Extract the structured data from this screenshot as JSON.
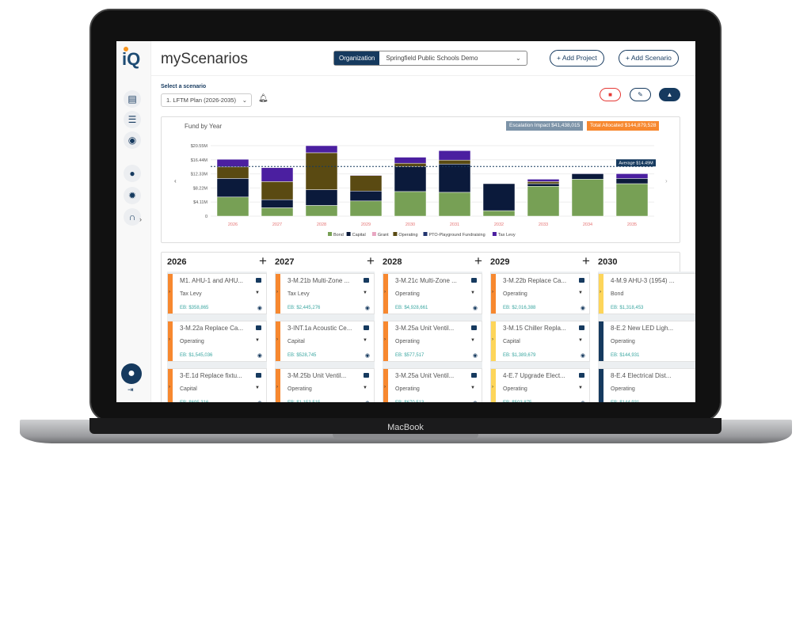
{
  "device_label": "MacBook",
  "app": {
    "logo": "iQ",
    "title": "myScenarios"
  },
  "sidebar": {
    "icons": [
      "clipboard-icon",
      "server-swap-icon",
      "gauge-icon",
      "user-icon",
      "gear-icon",
      "headset-icon"
    ],
    "expand": "›",
    "logout": "⇥"
  },
  "header": {
    "org_label": "Organization",
    "org_value": "Springfield Public Schools Demo",
    "add_project": "+ Add Project",
    "add_scenario": "+ Add Scenario"
  },
  "scenario": {
    "label": "Select a scenario",
    "value": "1. LFTM Plan (2026-2035)"
  },
  "badges": {
    "escalation": "Escalation Impact $41,438,015",
    "total": "Total Allocated $144,879,528"
  },
  "colors": {
    "primary": "#163a5f",
    "orange": "#f7882f",
    "yellow": "#fdd55a",
    "teal": "#3aa6a0",
    "delete": "#e53935"
  },
  "chart_data": {
    "type": "bar",
    "stacked": true,
    "title": "Fund by Year",
    "categories": [
      "2026",
      "2027",
      "2028",
      "2029",
      "2030",
      "2031",
      "2032",
      "2033",
      "2034",
      "2035"
    ],
    "yticks": [
      "0",
      "$4.11M",
      "$8.22M",
      "$12.33M",
      "$16.44M",
      "$20.55M"
    ],
    "ylim": [
      0,
      20.55
    ],
    "unit": "$M",
    "average": {
      "label": "Average $14.49M",
      "value": 14.49
    },
    "series": [
      {
        "name": "Bond",
        "color": "#77a055",
        "values": [
          5.58,
          2.44,
          3.13,
          4.43,
          7.18,
          6.95,
          1.6,
          8.71,
          10.77,
          9.47
        ]
      },
      {
        "name": "Capital",
        "color": "#0b1a3b",
        "values": [
          5.42,
          2.37,
          4.59,
          2.9,
          7.26,
          8.25,
          7.87,
          0.76,
          1.61,
          1.53
        ]
      },
      {
        "name": "Grant",
        "color": "#e8a6c1",
        "values": [
          0,
          0,
          0,
          0,
          0,
          0,
          0,
          0,
          0,
          0
        ]
      },
      {
        "name": "Operating",
        "color": "#5a4a12",
        "values": [
          3.36,
          5.27,
          10.77,
          4.51,
          0.99,
          1.15,
          0,
          0.61,
          0,
          0
        ]
      },
      {
        "name": "PTO-Playground Fundraising",
        "color": "#22346e",
        "values": [
          0,
          0,
          0,
          0,
          0,
          0,
          0,
          0,
          0,
          0
        ]
      },
      {
        "name": "Tax Levy",
        "color": "#4b1fa0",
        "values": [
          2.22,
          4.05,
          2.06,
          0.16,
          1.76,
          2.75,
          0,
          0.69,
          0.15,
          1.38
        ]
      }
    ],
    "legend": "bottom",
    "grid": true
  },
  "board": [
    {
      "year": "2026",
      "cards": [
        {
          "name": "M1. AHU-1 and AHU...",
          "fund": "Tax Levy",
          "eb": "EB: $358,865",
          "color": "#f7882f"
        },
        {
          "name": "3-M.22a Replace Ca...",
          "fund": "Operating",
          "eb": "EB: $1,545,036",
          "color": "#f7882f"
        },
        {
          "name": "3-E.1d Replace fixtu...",
          "fund": "Capital",
          "eb": "EB: $695,316",
          "color": "#f7882f"
        }
      ]
    },
    {
      "year": "2027",
      "cards": [
        {
          "name": "3-M.21b Multi-Zone ...",
          "fund": "Tax Levy",
          "eb": "EB: $2,445,276",
          "color": "#f7882f"
        },
        {
          "name": "3-INT.1a Acoustic Ce...",
          "fund": "Capital",
          "eb": "EB: $528,745",
          "color": "#f7882f"
        },
        {
          "name": "3-M.25b Unit Ventil...",
          "fund": "Operating",
          "eb": "EB: $1,153,515",
          "color": "#f7882f"
        }
      ]
    },
    {
      "year": "2028",
      "cards": [
        {
          "name": "3-M.21c Multi-Zone ...",
          "fund": "Operating",
          "eb": "EB: $4,928,661",
          "color": "#f7882f"
        },
        {
          "name": "3-M.25a Unit Ventil...",
          "fund": "Operating",
          "eb": "EB: $577,517",
          "color": "#f7882f"
        },
        {
          "name": "3-M.25a Unit Ventil...",
          "fund": "Operating",
          "eb": "EB: $670,513",
          "color": "#f7882f"
        }
      ]
    },
    {
      "year": "2029",
      "cards": [
        {
          "name": "3-M.22b Replace Ca...",
          "fund": "Operating",
          "eb": "EB: $2,016,388",
          "color": "#f7882f"
        },
        {
          "name": "3-M.15 Chiller Repla...",
          "fund": "Capital",
          "eb": "EB: $1,389,679",
          "color": "#fdd55a"
        },
        {
          "name": "4-E.7 Upgrade Elect...",
          "fund": "Operating",
          "eb": "EB: $503,875",
          "color": "#fdd55a"
        }
      ]
    },
    {
      "year": "2030",
      "cards": [
        {
          "name": "4-M.9 AHU-3 (1954) ...",
          "fund": "Bond",
          "eb": "EB: $1,318,453",
          "color": "#fdd55a"
        },
        {
          "name": "8-E.2 New LED Ligh...",
          "fund": "Operating",
          "eb": "EB: $144,931",
          "color": "#163a5f"
        },
        {
          "name": "8-E.4 Electrical Dist...",
          "fund": "Operating",
          "eb": "EB: $144,931",
          "color": "#163a5f"
        }
      ]
    }
  ]
}
